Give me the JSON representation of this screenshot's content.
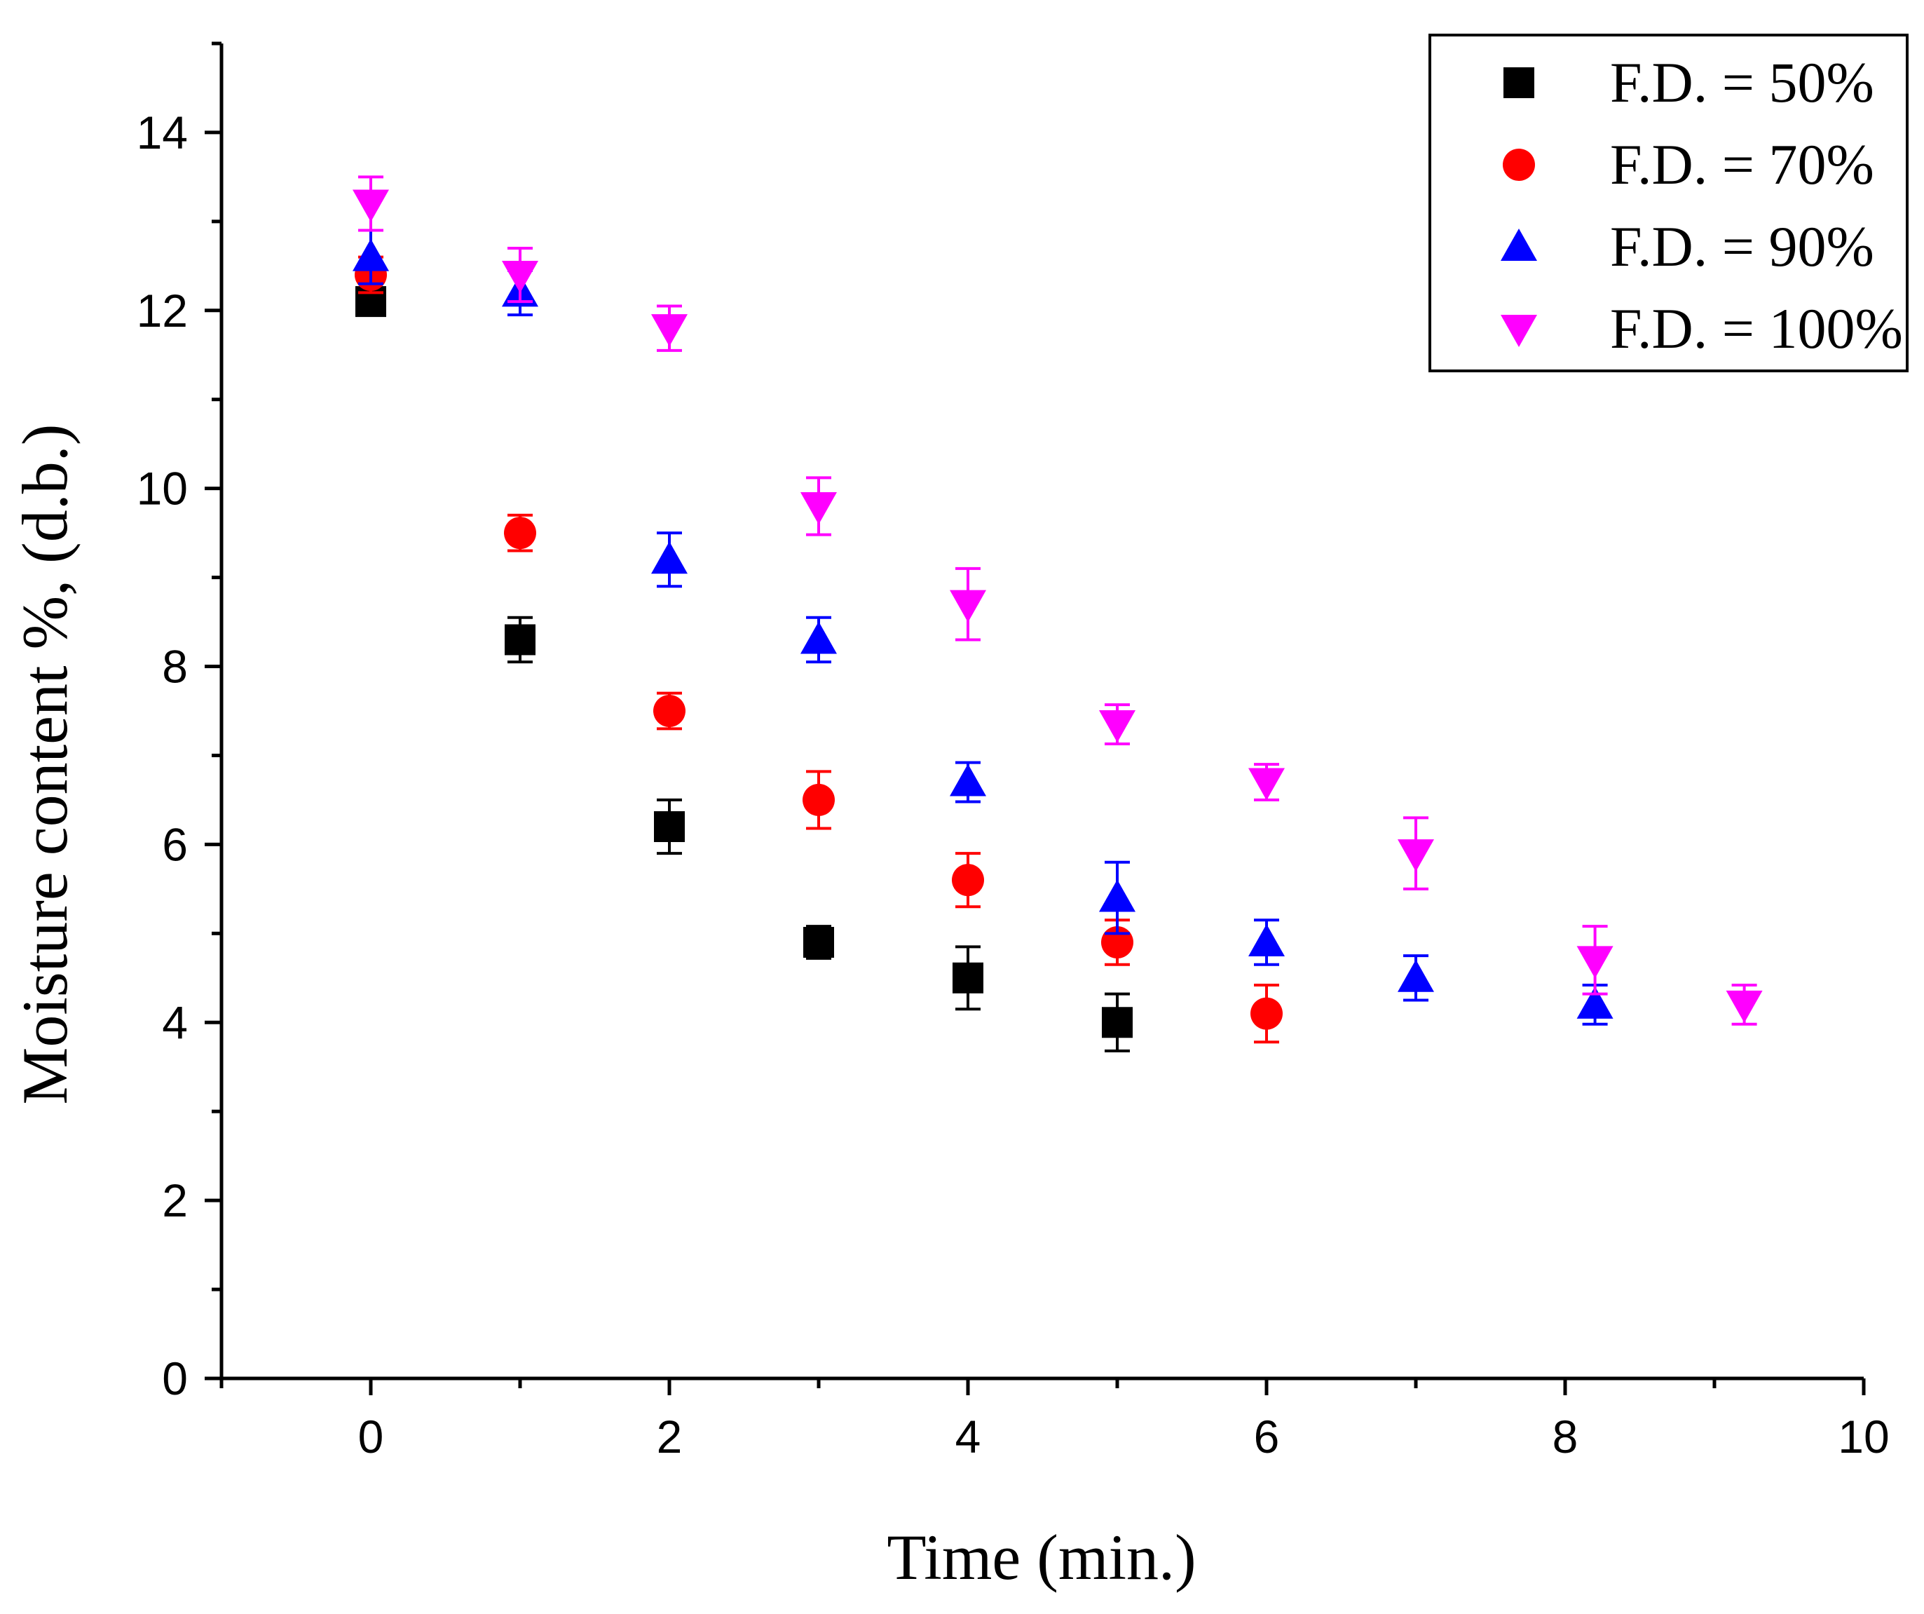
{
  "chart_data": {
    "type": "scatter",
    "title": "",
    "xlabel": "Time (min.)",
    "ylabel": "Moisture content %, (d.b.)",
    "xlim": [
      -1,
      10
    ],
    "ylim": [
      0,
      15
    ],
    "xticks": [
      0,
      2,
      4,
      6,
      8,
      10
    ],
    "yticks": [
      0,
      2,
      4,
      6,
      8,
      10,
      12,
      14
    ],
    "xtick_labels": [
      "0",
      "2",
      "4",
      "6",
      "8",
      "10"
    ],
    "ytick_labels": [
      "0",
      "2",
      "4",
      "6",
      "8",
      "10",
      "12",
      "14"
    ],
    "grid": false,
    "legend_position": "top-right",
    "series": [
      {
        "name": "F.D. = 50%",
        "marker": "square",
        "color": "#000000",
        "x": [
          0,
          1,
          2,
          3,
          4,
          5
        ],
        "y": [
          12.1,
          8.3,
          6.2,
          4.9,
          4.5,
          4.0
        ],
        "err": [
          0.15,
          0.25,
          0.3,
          0.18,
          0.35,
          0.32
        ]
      },
      {
        "name": "F.D. = 70%",
        "marker": "circle",
        "color": "#ff0000",
        "x": [
          0,
          1,
          2,
          3,
          4,
          5,
          6
        ],
        "y": [
          12.4,
          9.5,
          7.5,
          6.5,
          5.6,
          4.9,
          4.1
        ],
        "err": [
          0.2,
          0.2,
          0.2,
          0.32,
          0.3,
          0.25,
          0.32
        ]
      },
      {
        "name": "F.D. = 90%",
        "marker": "triangle-up",
        "color": "#0000ff",
        "x": [
          0,
          1,
          2,
          3,
          4,
          5,
          6,
          7,
          8.2
        ],
        "y": [
          12.6,
          12.2,
          9.2,
          8.3,
          6.7,
          5.4,
          4.9,
          4.5,
          4.2
        ],
        "err": [
          0.3,
          0.25,
          0.3,
          0.25,
          0.22,
          0.4,
          0.25,
          0.25,
          0.22
        ]
      },
      {
        "name": "F.D. = 100%",
        "marker": "triangle-down",
        "color": "#ff00ff",
        "x": [
          0,
          1,
          2,
          3,
          4,
          5,
          6,
          7,
          8.2,
          9.2
        ],
        "y": [
          13.2,
          12.4,
          11.8,
          9.8,
          8.7,
          7.35,
          6.7,
          5.9,
          4.7,
          4.2
        ],
        "err": [
          0.3,
          0.3,
          0.25,
          0.32,
          0.4,
          0.22,
          0.2,
          0.4,
          0.38,
          0.22
        ]
      }
    ]
  }
}
